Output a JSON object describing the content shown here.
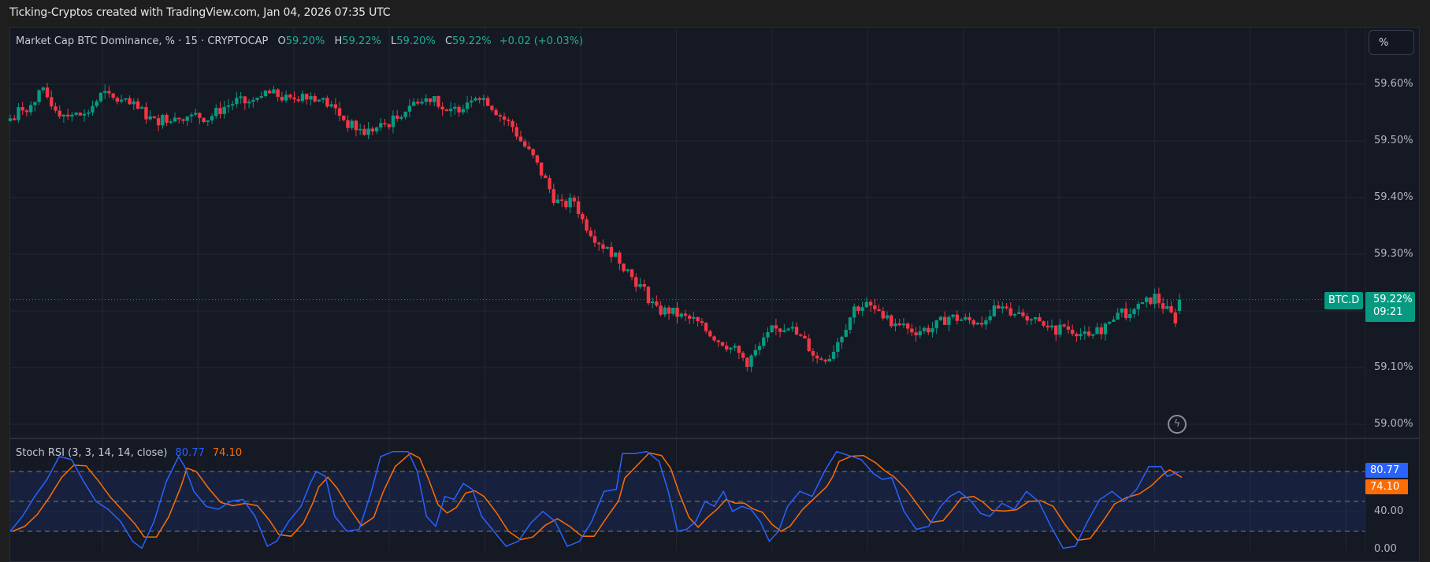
{
  "header": {
    "credit": "Ticking-Cryptos created with TradingView.com, Jan 04, 2026 07:35 UTC"
  },
  "legend": {
    "title": "Market Cap BTC Dominance, % · 15 · CRYPTOCAP",
    "open_label": "O",
    "open": "59.20%",
    "high_label": "H",
    "high": "59.22%",
    "low_label": "L",
    "low": "59.20%",
    "close_label": "C",
    "close": "59.22%",
    "change": "+0.02 (+0.03%)"
  },
  "scale_button": "%",
  "price_axis": {
    "ticks": [
      {
        "label": "59.60%",
        "value": 59.6
      },
      {
        "label": "59.50%",
        "value": 59.5
      },
      {
        "label": "59.40%",
        "value": 59.4
      },
      {
        "label": "59.30%",
        "value": 59.3
      },
      {
        "label": "59.10%",
        "value": 59.1
      },
      {
        "label": "59.00%",
        "value": 59.0
      }
    ]
  },
  "last_price": {
    "symbol": "BTC.D",
    "value": "59.22%",
    "countdown": "09:21"
  },
  "stoch": {
    "title": "Stoch RSI (3, 3, 14, 14, close)",
    "k_value": "80.77",
    "d_value": "74.10",
    "axis": [
      {
        "label": "40.00"
      },
      {
        "label": "0.00"
      }
    ]
  },
  "colors": {
    "up": "#089981",
    "down": "#f23645",
    "k_line": "#2962ff",
    "d_line": "#ff6d00",
    "background": "#151924",
    "grid": "#232733"
  },
  "chart_data": [
    {
      "type": "candlestick",
      "title": "Market Cap BTC Dominance, % · 15 · CRYPTOCAP",
      "ylabel": "%",
      "ylim": [
        58.98,
        59.62
      ],
      "grid": true,
      "ohlc_last": {
        "open": 59.2,
        "high": 59.22,
        "low": 59.2,
        "close": 59.22,
        "change": 0.02,
        "change_pct": 0.03
      },
      "close_path": [
        [
          0,
          59.54
        ],
        [
          5,
          59.57
        ],
        [
          8,
          59.585
        ],
        [
          12,
          59.55
        ],
        [
          18,
          59.545
        ],
        [
          22,
          59.58
        ],
        [
          25,
          59.575
        ],
        [
          30,
          59.56
        ],
        [
          35,
          59.535
        ],
        [
          40,
          59.545
        ],
        [
          45,
          59.545
        ],
        [
          48,
          59.54
        ],
        [
          52,
          59.56
        ],
        [
          55,
          59.57
        ],
        [
          59,
          59.565
        ],
        [
          62,
          59.585
        ],
        [
          65,
          59.58
        ],
        [
          68,
          59.57
        ],
        [
          71,
          59.585
        ],
        [
          75,
          59.575
        ],
        [
          79,
          59.555
        ],
        [
          82,
          59.53
        ],
        [
          86,
          59.515
        ],
        [
          90,
          59.525
        ],
        [
          94,
          59.54
        ],
        [
          97,
          59.565
        ],
        [
          100,
          59.57
        ],
        [
          103,
          59.58
        ],
        [
          106,
          59.545
        ],
        [
          110,
          59.565
        ],
        [
          113,
          59.585
        ],
        [
          116,
          59.57
        ],
        [
          119,
          59.545
        ],
        [
          122,
          59.525
        ],
        [
          124,
          59.5
        ],
        [
          127,
          59.47
        ],
        [
          130,
          59.43
        ],
        [
          132,
          59.4
        ],
        [
          134,
          59.385
        ],
        [
          137,
          59.395
        ],
        [
          139,
          59.36
        ],
        [
          142,
          59.33
        ],
        [
          144,
          59.315
        ],
        [
          147,
          59.3
        ],
        [
          149,
          59.28
        ],
        [
          151,
          59.26
        ],
        [
          154,
          59.235
        ],
        [
          157,
          59.2
        ],
        [
          160,
          59.2
        ],
        [
          163,
          59.19
        ],
        [
          167,
          59.18
        ],
        [
          170,
          59.16
        ],
        [
          173,
          59.145
        ],
        [
          176,
          59.13
        ],
        [
          179,
          59.11
        ],
        [
          182,
          59.135
        ],
        [
          185,
          59.165
        ],
        [
          189,
          59.17
        ],
        [
          193,
          59.145
        ],
        [
          196,
          59.115
        ],
        [
          199,
          59.12
        ],
        [
          202,
          59.16
        ],
        [
          205,
          59.205
        ],
        [
          208,
          59.21
        ],
        [
          212,
          59.19
        ],
        [
          216,
          59.17
        ],
        [
          220,
          59.165
        ],
        [
          224,
          59.17
        ],
        [
          228,
          59.19
        ],
        [
          231,
          59.185
        ],
        [
          235,
          59.18
        ],
        [
          239,
          59.2
        ],
        [
          243,
          59.2
        ],
        [
          247,
          59.19
        ],
        [
          250,
          59.175
        ],
        [
          253,
          59.165
        ],
        [
          256,
          59.17
        ],
        [
          259,
          59.165
        ],
        [
          262,
          59.15
        ],
        [
          266,
          59.175
        ],
        [
          269,
          59.2
        ],
        [
          272,
          59.19
        ],
        [
          276,
          59.215
        ],
        [
          278,
          59.225
        ],
        [
          281,
          59.2
        ],
        [
          283,
          59.185
        ]
      ],
      "note": "close_path = [candle_index, close%]; 285 candles of 15m"
    },
    {
      "type": "line",
      "title": "Stoch RSI (3, 3, 14, 14, close)",
      "ylim": [
        0,
        100
      ],
      "bands": [
        20,
        50,
        80
      ],
      "series": [
        {
          "name": "%K",
          "last": 80.77,
          "color": "#2962ff"
        },
        {
          "name": "%D",
          "last": 74.1,
          "color": "#ff6d00"
        }
      ],
      "k_path": [
        [
          0,
          20
        ],
        [
          4,
          35
        ],
        [
          8,
          55
        ],
        [
          12,
          72
        ],
        [
          16,
          95
        ],
        [
          20,
          92
        ],
        [
          24,
          70
        ],
        [
          28,
          50
        ],
        [
          32,
          42
        ],
        [
          36,
          30
        ],
        [
          40,
          10
        ],
        [
          43,
          3
        ],
        [
          47,
          30
        ],
        [
          51,
          70
        ],
        [
          55,
          95
        ],
        [
          57,
          85
        ],
        [
          60,
          60
        ],
        [
          64,
          45
        ],
        [
          68,
          42
        ],
        [
          72,
          50
        ],
        [
          76,
          52
        ],
        [
          80,
          35
        ],
        [
          84,
          5
        ],
        [
          87,
          10
        ],
        [
          91,
          30
        ],
        [
          95,
          45
        ],
        [
          98,
          68
        ],
        [
          100,
          80
        ],
        [
          103,
          75
        ],
        [
          106,
          35
        ],
        [
          110,
          20
        ],
        [
          114,
          22
        ],
        [
          118,
          60
        ],
        [
          121,
          95
        ],
        [
          125,
          100
        ],
        [
          130,
          100
        ],
        [
          133,
          80
        ],
        [
          136,
          35
        ],
        [
          139,
          25
        ],
        [
          142,
          55
        ],
        [
          145,
          52
        ],
        [
          148,
          68
        ],
        [
          151,
          62
        ],
        [
          154,
          35
        ],
        [
          158,
          20
        ],
        [
          162,
          5
        ],
        [
          166,
          10
        ],
        [
          170,
          28
        ],
        [
          174,
          40
        ],
        [
          178,
          30
        ],
        [
          182,
          5
        ],
        [
          186,
          10
        ],
        [
          190,
          30
        ],
        [
          194,
          60
        ],
        [
          198,
          62
        ],
        [
          200,
          98
        ],
        [
          204,
          98
        ],
        [
          208,
          100
        ],
        [
          212,
          90
        ],
        [
          215,
          60
        ],
        [
          218,
          20
        ],
        [
          221,
          22
        ],
        [
          224,
          30
        ],
        [
          227,
          50
        ],
        [
          230,
          45
        ],
        [
          233,
          60
        ],
        [
          236,
          40
        ],
        [
          239,
          45
        ],
        [
          242,
          42
        ],
        [
          245,
          30
        ],
        [
          248,
          10
        ],
        [
          251,
          20
        ],
        [
          254,
          45
        ],
        [
          258,
          60
        ],
        [
          262,
          55
        ],
        [
          266,
          80
        ],
        [
          268,
          90
        ],
        [
          270,
          100
        ],
        [
          274,
          96
        ],
        [
          278,
          92
        ],
        [
          282,
          78
        ],
        [
          285,
          72
        ],
        [
          288,
          74
        ],
        [
          292,
          40
        ],
        [
          296,
          22
        ],
        [
          300,
          25
        ],
        [
          304,
          45
        ],
        [
          307,
          55
        ],
        [
          310,
          60
        ],
        [
          314,
          50
        ],
        [
          317,
          38
        ],
        [
          320,
          35
        ],
        [
          324,
          48
        ],
        [
          328,
          42
        ],
        [
          332,
          60
        ],
        [
          336,
          50
        ],
        [
          340,
          25
        ],
        [
          344,
          3
        ],
        [
          348,
          5
        ],
        [
          352,
          30
        ],
        [
          356,
          52
        ],
        [
          360,
          60
        ],
        [
          364,
          50
        ],
        [
          368,
          62
        ],
        [
          372,
          85
        ],
        [
          376,
          85
        ],
        [
          378,
          75
        ],
        [
          382,
          80
        ]
      ],
      "note": "path x in px offset from pane left/2.75 approx"
    }
  ]
}
